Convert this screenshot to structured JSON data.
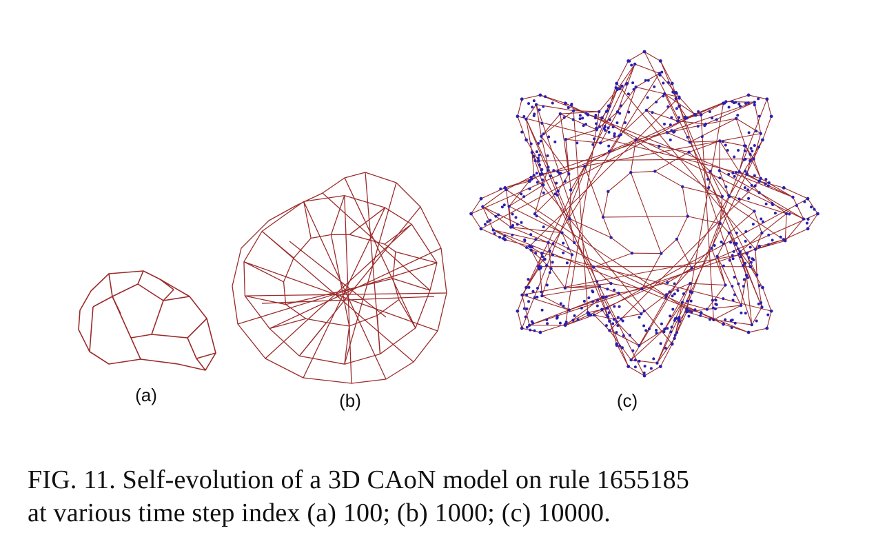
{
  "figure": {
    "edge_color": "#9b2a2a",
    "node_color": "#2b1fae",
    "panels": [
      {
        "id": "a",
        "label": "(a)"
      },
      {
        "id": "b",
        "label": "(b)"
      },
      {
        "id": "c",
        "label": "(c)"
      }
    ]
  },
  "caption": {
    "line1": "FIG. 11. Self-evolution of a 3D CAoN model on rule 1655185",
    "line2": "at various time step index (a) 100; (b) 1000; (c) 10000."
  }
}
